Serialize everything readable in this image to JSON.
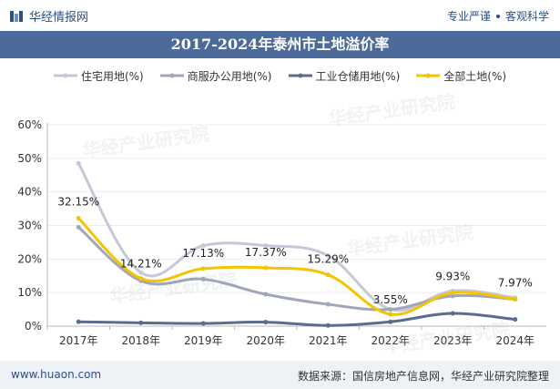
{
  "header": {
    "brand_name": "华经情报网",
    "right_text_1": "专业严谨",
    "right_text_2": "客观科学"
  },
  "watermark_text": "华经产业研究院",
  "footer": {
    "website": "www.huaon.com",
    "source": "数据来源：国信房地产信息网，华经产业研究院整理"
  },
  "colors": {
    "residential": "#c3c9d9",
    "commercial": "#9fa6bd",
    "industrial": "#5c6c8e",
    "all": "#f5c400",
    "title_bg": "#4c6a9a"
  },
  "chart_data": {
    "type": "line",
    "title": "2017-2024年泰州市土地溢价率",
    "categories": [
      "2017年",
      "2018年",
      "2019年",
      "2020年",
      "2021年",
      "2022年",
      "2023年",
      "2024年"
    ],
    "yticks": [
      "0%",
      "10%",
      "20%",
      "30%",
      "40%",
      "50%",
      "60%"
    ],
    "ylim": [
      0,
      60
    ],
    "legend_position": "top",
    "series": [
      {
        "name": "住宅用地(%)",
        "values": [
          48.5,
          16.0,
          24.0,
          24.0,
          21.0,
          5.0,
          10.5,
          8.5
        ],
        "labels": [
          "",
          "",
          "",
          "",
          "",
          "",
          "",
          ""
        ]
      },
      {
        "name": "商服办公用地(%)",
        "values": [
          29.5,
          13.5,
          14.0,
          9.5,
          6.5,
          5.0,
          9.0,
          8.0
        ],
        "labels": [
          "",
          "",
          "",
          "",
          "",
          "",
          "",
          ""
        ]
      },
      {
        "name": "工业仓储用地(%)",
        "values": [
          1.3,
          1.0,
          0.8,
          1.2,
          0.2,
          1.3,
          3.8,
          2.0
        ],
        "labels": [
          "",
          "",
          "",
          "",
          "",
          "",
          "",
          ""
        ]
      },
      {
        "name": "全部土地(%)",
        "values": [
          32.15,
          14.21,
          17.13,
          17.37,
          15.29,
          3.55,
          9.93,
          7.97
        ],
        "labels": [
          "32.15%",
          "14.21%",
          "17.13%",
          "17.37%",
          "15.29%",
          "3.55%",
          "9.93%",
          "7.97%"
        ]
      }
    ]
  }
}
